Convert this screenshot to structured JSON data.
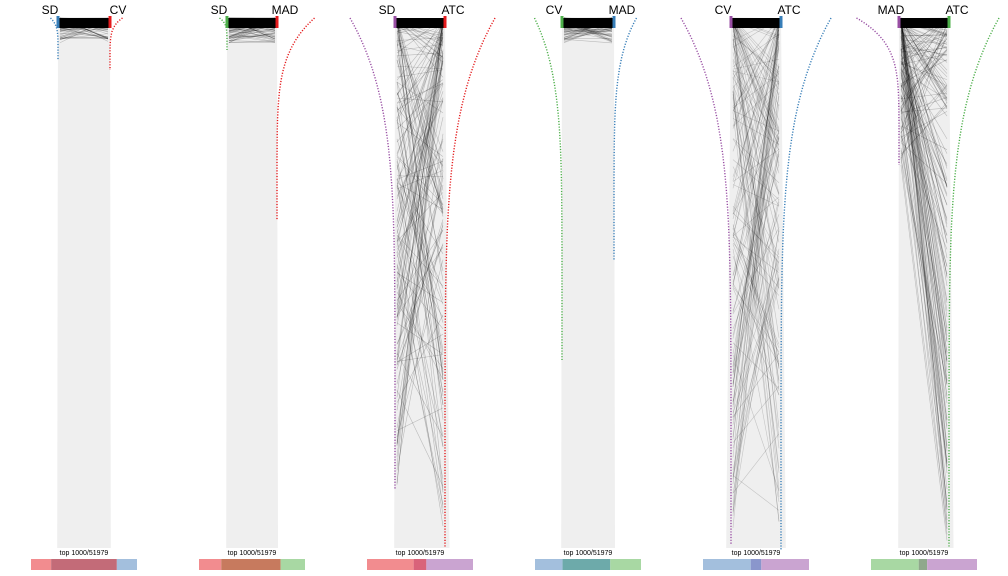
{
  "chart_data": [
    {
      "type": "slope-comparison",
      "left": "SD",
      "right": "CV",
      "left_color": "#377EB8",
      "right_color": "#E41A1C",
      "top_label": "top 1000/51979",
      "overlap_bar": {
        "left_color": "#F28C8F",
        "mid_color": "#C36B78",
        "right_color": "#A3BFDD",
        "left_frac": 0.19,
        "mid_frac": 0.62,
        "right_frac": 0.19
      }
    },
    {
      "type": "slope-comparison",
      "left": "SD",
      "right": "MAD",
      "left_color": "#4DAF4A",
      "right_color": "#E41A1C",
      "top_label": "top 1000/51979",
      "overlap_bar": {
        "left_color": "#F28C8F",
        "mid_color": "#C77A5E",
        "right_color": "#A8D8A3",
        "left_frac": 0.21,
        "mid_frac": 0.56,
        "right_frac": 0.23
      }
    },
    {
      "type": "slope-comparison",
      "left": "SD",
      "right": "ATC",
      "left_color": "#984EA3",
      "right_color": "#E41A1C",
      "top_label": "top 1000/51979",
      "overlap_bar": {
        "left_color": "#F28C8F",
        "mid_color": "#D9637A",
        "right_color": "#CAA4D1",
        "left_frac": 0.44,
        "mid_frac": 0.12,
        "right_frac": 0.44
      }
    },
    {
      "type": "slope-comparison",
      "left": "CV",
      "right": "MAD",
      "left_color": "#4DAF4A",
      "right_color": "#377EB8",
      "top_label": "top 1000/51979",
      "overlap_bar": {
        "left_color": "#A3BFDD",
        "mid_color": "#6DAAAA",
        "right_color": "#A8D8A3",
        "left_frac": 0.26,
        "mid_frac": 0.45,
        "right_frac": 0.29
      }
    },
    {
      "type": "slope-comparison",
      "left": "CV",
      "right": "ATC",
      "left_color": "#984EA3",
      "right_color": "#377EB8",
      "top_label": "top 1000/51979",
      "overlap_bar": {
        "left_color": "#A3BFDD",
        "mid_color": "#8A96CC",
        "right_color": "#CAA4D1",
        "left_frac": 0.45,
        "mid_frac": 0.1,
        "right_frac": 0.45
      }
    },
    {
      "type": "slope-comparison",
      "left": "MAD",
      "right": "ATC",
      "left_color": "#984EA3",
      "right_color": "#4DAF4A",
      "top_label": "top 1000/51979",
      "overlap_bar": {
        "left_color": "#A8D8A3",
        "mid_color": "#8FA88C",
        "right_color": "#CAA4D1",
        "left_frac": 0.45,
        "mid_frac": 0.08,
        "right_frac": 0.47
      }
    }
  ]
}
